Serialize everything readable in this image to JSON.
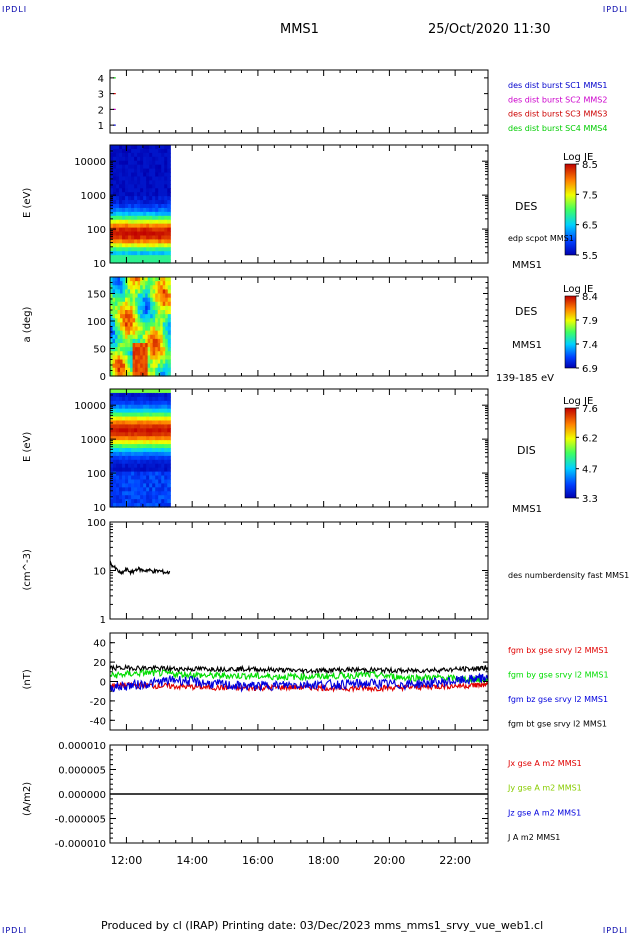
{
  "header": {
    "left_corner": "IPDLI",
    "right_corner": "IPDLI",
    "title": "MMS1",
    "datetime": "25/Oct/2020 11:30"
  },
  "footer": {
    "text": "Produced by cl (IRAP)   Printing date: 03/Dec/2023   mms_mms1_srvy_vue_web1.cl",
    "left_corner": "IPDLI",
    "right_corner": "IPDLI"
  },
  "colors": {
    "mms1": "#0000cc",
    "mms2": "#cc00cc",
    "mms3": "#cc0000",
    "mms4": "#00cc00",
    "bx": "#e00000",
    "by": "#00dd00",
    "bz": "#0000dd",
    "bt": "#000000"
  },
  "chart_data": [
    {
      "type": "scatter",
      "panel": "data-availability",
      "ylim": [
        0.5,
        4.5
      ],
      "yticks": [
        "1",
        "2",
        "3",
        "4"
      ],
      "x": [
        "11:30",
        "11:35"
      ],
      "series": [
        {
          "name": "des dist burst SC1 MMS1",
          "y": 1,
          "color": "#0000cc"
        },
        {
          "name": "des dist burst SC2 MMS2",
          "y": 2,
          "color": "#cc00cc"
        },
        {
          "name": "des dist burst SC3 MMS3",
          "y": 3,
          "color": "#cc0000"
        },
        {
          "name": "des dist burst SC4 MMS4",
          "y": 4,
          "color": "#00cc00"
        }
      ]
    },
    {
      "type": "heatmap",
      "panel": "des-energy-spectrogram",
      "ylabel": "E (eV)",
      "yscale": "log",
      "ylim": [
        10,
        30000
      ],
      "yticks": [
        "10",
        "100",
        "1000",
        "10000"
      ],
      "data_extent": [
        "11:30",
        "13:20"
      ],
      "label": "DES",
      "extra_label": "edp scpot MMS1",
      "spacecraft": "MMS1",
      "colorbar": {
        "title": "Log JE",
        "min": 5.5,
        "max": 8.5,
        "ticks": [
          "8.5",
          "7.5",
          "6.5",
          "5.5"
        ]
      }
    },
    {
      "type": "heatmap",
      "panel": "des-pitch-angle",
      "ylabel": "a (deg)",
      "ylim": [
        0,
        180
      ],
      "yticks": [
        "0",
        "50",
        "100",
        "150"
      ],
      "data_extent": [
        "11:30",
        "13:20"
      ],
      "label": "DES",
      "spacecraft": "MMS1",
      "energy_range": "139-185 eV",
      "colorbar": {
        "title": "Log JE",
        "min": 6.9,
        "max": 8.4,
        "ticks": [
          "8.4",
          "7.9",
          "7.4",
          "6.9"
        ]
      }
    },
    {
      "type": "heatmap",
      "panel": "dis-energy-spectrogram",
      "ylabel": "E (eV)",
      "yscale": "log",
      "ylim": [
        10,
        30000
      ],
      "yticks": [
        "10",
        "100",
        "1000",
        "10000"
      ],
      "data_extent": [
        "11:30",
        "13:20"
      ],
      "label": "DIS",
      "spacecraft": "MMS1",
      "colorbar": {
        "title": "Log JE",
        "min": 3.3,
        "max": 7.6,
        "ticks": [
          "7.6",
          "6.2",
          "4.7",
          "3.3"
        ]
      }
    },
    {
      "type": "line",
      "panel": "density",
      "ylabel": "(cm^-3)",
      "yscale": "log",
      "ylim": [
        1,
        100
      ],
      "yticks": [
        "1",
        "10",
        "100"
      ],
      "series": [
        {
          "name": "des numberdensity fast MMS1",
          "x": [
            "11:30",
            "11:40",
            "11:50",
            "12:00",
            "12:10",
            "12:20",
            "12:30",
            "12:40",
            "12:50",
            "13:00",
            "13:10",
            "13:20"
          ],
          "y": [
            14,
            11,
            8.5,
            10.5,
            9,
            11,
            10,
            10.2,
            9.6,
            9.8,
            9.2,
            9.0
          ]
        }
      ]
    },
    {
      "type": "line",
      "panel": "magnetic-field",
      "ylabel": "(nT)",
      "ylim": [
        -50,
        50
      ],
      "yticks": [
        "-40",
        "-20",
        "0",
        "20",
        "40"
      ],
      "series": [
        {
          "name": "fgm bx gse srvy l2 MMS1",
          "x": [
            "11:30",
            "12:30",
            "13:30",
            "14:30",
            "15:30",
            "16:30",
            "17:30",
            "18:30",
            "19:30",
            "20:30",
            "21:30",
            "22:30",
            "23:00"
          ],
          "y": [
            -4,
            -4,
            -5,
            -6,
            -7,
            -6,
            -6,
            -7,
            -7,
            -6,
            -5,
            -4,
            -3
          ]
        },
        {
          "name": "fgm by gse srvy l2 MMS1",
          "x": [
            "11:30",
            "12:30",
            "13:30",
            "14:30",
            "15:30",
            "16:30",
            "17:30",
            "18:30",
            "19:30",
            "20:30",
            "21:30",
            "22:30",
            "23:00"
          ],
          "y": [
            6,
            9,
            8,
            6,
            6,
            5,
            5,
            6,
            7,
            4,
            4,
            2,
            2
          ]
        },
        {
          "name": "fgm bz gse srvy l2 MMS1",
          "x": [
            "11:30",
            "12:30",
            "13:30",
            "14:30",
            "15:30",
            "16:30",
            "17:30",
            "18:30",
            "19:30",
            "20:30",
            "21:30",
            "22:30",
            "23:00"
          ],
          "y": [
            -6,
            -3,
            2,
            -2,
            -5,
            -4,
            -3,
            -3,
            -2,
            -3,
            -1,
            2,
            4
          ]
        },
        {
          "name": "fgm bt gse srvy l2 MMS1",
          "x": [
            "11:30",
            "12:30",
            "13:30",
            "14:30",
            "15:30",
            "16:30",
            "17:30",
            "18:30",
            "19:30",
            "20:30",
            "21:30",
            "22:30",
            "23:00"
          ],
          "y": [
            14,
            14,
            13,
            13,
            13,
            12,
            11,
            12,
            12,
            11,
            12,
            13,
            14
          ]
        }
      ]
    },
    {
      "type": "line",
      "panel": "current-density",
      "ylabel": "(A/m2)",
      "ylim": [
        -1e-05,
        1e-05
      ],
      "yticks": [
        "-0.000010",
        "-0.000005",
        "0.000000",
        "0.000005",
        "0.000010"
      ],
      "series": [
        {
          "name": "Jx gse A m2 MMS1",
          "color": "#e00000"
        },
        {
          "name": "Jy gse A m2 MMS1",
          "color": "#88cc00"
        },
        {
          "name": "Jz gse A m2 MMS1",
          "color": "#0000dd"
        },
        {
          "name": "J A m2 MMS1",
          "color": "#000000",
          "x": [
            "11:30",
            "23:00"
          ],
          "y": [
            0,
            0
          ]
        }
      ]
    }
  ],
  "x_axis": {
    "tick_labels": [
      "12:00",
      "14:00",
      "16:00",
      "18:00",
      "20:00",
      "22:00"
    ],
    "range": [
      "11:30",
      "23:00"
    ]
  }
}
